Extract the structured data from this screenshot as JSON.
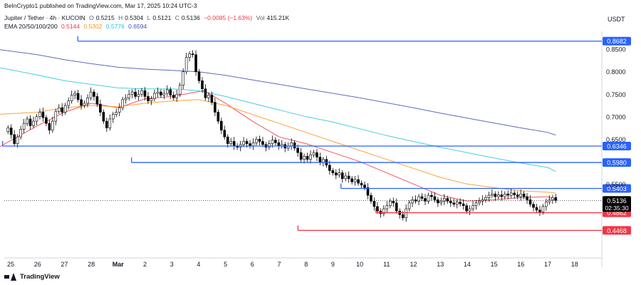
{
  "header": {
    "published": "BeInCrypto1 published on TradingView.com, Mar 17, 2025 10:24 UTC-3",
    "symbol": "Jupiter / Tether · 4h · KUCOIN",
    "o_label": "O",
    "o": "0.5215",
    "h_label": "H",
    "h": "0.5304",
    "l_label": "L",
    "l": "0.5121",
    "c_label": "C",
    "c": "0.5136",
    "change": "−0.0085 (−1.63%)",
    "vol_label": "Vol",
    "vol": "415.21K",
    "ema_label": "EMA 20/50/100/200",
    "ema20": "0.5144",
    "ema50": "0.5302",
    "ema100": "0.5776",
    "ema200": "0.6594"
  },
  "currency": "USDT",
  "branding": "TradingView",
  "countdown": "02:35:30",
  "colors": {
    "up": "#ffffff",
    "down": "#000000",
    "ema20": "#f23645",
    "ema50": "#f7931a",
    "ema100": "#26c6da",
    "ema200": "#3f51b5",
    "resistance": "#2962ff",
    "support": "#f23645"
  },
  "chart_data": {
    "type": "candlestick",
    "timeframe": "4h",
    "ylim": [
      0.43,
      0.89
    ],
    "x_tick_labels": [
      "25",
      "26",
      "27",
      "28",
      "Mar",
      "2",
      "3",
      "4",
      "5",
      "6",
      "7",
      "8",
      "9",
      "10",
      "11",
      "12",
      "13",
      "14",
      "15",
      "16",
      "17",
      "18"
    ],
    "y_tick_labels": [
      "0.8500",
      "0.8000",
      "0.7500",
      "0.7000",
      "0.6500",
      "0.5500"
    ],
    "y_ticks": [
      0.85,
      0.8,
      0.75,
      0.7,
      0.65,
      0.55
    ],
    "levels": [
      {
        "price": 0.8682,
        "label": "0.8682",
        "kind": "resistance",
        "from_day": 2.5
      },
      {
        "price": 0.6346,
        "label": "0.6346",
        "kind": "resistance",
        "from_day": -0.3
      },
      {
        "price": 0.598,
        "label": "0.5980",
        "kind": "resistance",
        "from_day": 4.5
      },
      {
        "price": 0.5403,
        "label": "0.5403",
        "kind": "resistance",
        "from_day": 12.3
      },
      {
        "price": 0.4862,
        "label": "0.4862",
        "kind": "support",
        "from_day": 13.6
      },
      {
        "price": 0.4468,
        "label": "0.4468",
        "kind": "support",
        "from_day": 10.7
      }
    ],
    "last_price": {
      "price": 0.5136,
      "label": "0.5136"
    },
    "ema_series": [
      {
        "name": "EMA 20",
        "points": [
          [
            -0.5,
            0.63
          ],
          [
            1,
            0.68
          ],
          [
            2,
            0.71
          ],
          [
            3,
            0.73
          ],
          [
            4,
            0.72
          ],
          [
            5,
            0.74
          ],
          [
            6,
            0.745
          ],
          [
            7.2,
            0.758
          ],
          [
            8,
            0.73
          ],
          [
            9,
            0.69
          ],
          [
            10,
            0.655
          ],
          [
            11,
            0.64
          ],
          [
            12,
            0.62
          ],
          [
            13,
            0.6
          ],
          [
            14,
            0.575
          ],
          [
            15,
            0.55
          ],
          [
            16,
            0.525
          ],
          [
            17,
            0.512
          ],
          [
            18,
            0.515
          ],
          [
            19,
            0.52
          ],
          [
            20,
            0.522
          ],
          [
            20.3,
            0.514
          ]
        ]
      },
      {
        "name": "EMA 50",
        "points": [
          [
            -0.5,
            0.705
          ],
          [
            1,
            0.71
          ],
          [
            2,
            0.72
          ],
          [
            3,
            0.725
          ],
          [
            4,
            0.722
          ],
          [
            5,
            0.73
          ],
          [
            6,
            0.735
          ],
          [
            7,
            0.738
          ],
          [
            8,
            0.725
          ],
          [
            9,
            0.705
          ],
          [
            10,
            0.685
          ],
          [
            11,
            0.665
          ],
          [
            12,
            0.645
          ],
          [
            13,
            0.625
          ],
          [
            14,
            0.605
          ],
          [
            15,
            0.585
          ],
          [
            16,
            0.565
          ],
          [
            17,
            0.55
          ],
          [
            18,
            0.542
          ],
          [
            19,
            0.535
          ],
          [
            20,
            0.532
          ],
          [
            20.3,
            0.53
          ]
        ]
      },
      {
        "name": "EMA 100",
        "points": [
          [
            -0.5,
            0.81
          ],
          [
            1,
            0.793
          ],
          [
            2,
            0.78
          ],
          [
            3,
            0.772
          ],
          [
            4,
            0.764
          ],
          [
            5,
            0.762
          ],
          [
            6,
            0.762
          ],
          [
            7,
            0.758
          ],
          [
            8,
            0.745
          ],
          [
            9,
            0.73
          ],
          [
            10,
            0.715
          ],
          [
            11,
            0.7
          ],
          [
            12,
            0.688
          ],
          [
            13,
            0.673
          ],
          [
            14,
            0.658
          ],
          [
            15,
            0.645
          ],
          [
            16,
            0.632
          ],
          [
            17,
            0.62
          ],
          [
            18,
            0.608
          ],
          [
            19,
            0.597
          ],
          [
            20,
            0.587
          ],
          [
            20.3,
            0.578
          ]
        ]
      },
      {
        "name": "EMA 200",
        "points": [
          [
            -0.5,
            0.85
          ],
          [
            1,
            0.838
          ],
          [
            2,
            0.827
          ],
          [
            3,
            0.818
          ],
          [
            4,
            0.81
          ],
          [
            5,
            0.806
          ],
          [
            6,
            0.803
          ],
          [
            7,
            0.8
          ],
          [
            8,
            0.792
          ],
          [
            9,
            0.782
          ],
          [
            10,
            0.772
          ],
          [
            11,
            0.762
          ],
          [
            12,
            0.752
          ],
          [
            13,
            0.742
          ],
          [
            14,
            0.731
          ],
          [
            15,
            0.72
          ],
          [
            16,
            0.708
          ],
          [
            17,
            0.697
          ],
          [
            18,
            0.686
          ],
          [
            19,
            0.675
          ],
          [
            20,
            0.665
          ],
          [
            20.3,
            0.659
          ]
        ]
      }
    ],
    "candle_closes": [
      0.675,
      0.66,
      0.64,
      0.655,
      0.672,
      0.685,
      0.695,
      0.68,
      0.69,
      0.7,
      0.71,
      0.698,
      0.685,
      0.67,
      0.69,
      0.712,
      0.72,
      0.71,
      0.725,
      0.735,
      0.748,
      0.752,
      0.738,
      0.725,
      0.73,
      0.742,
      0.755,
      0.745,
      0.728,
      0.71,
      0.69,
      0.675,
      0.695,
      0.705,
      0.71,
      0.72,
      0.738,
      0.742,
      0.75,
      0.755,
      0.745,
      0.75,
      0.758,
      0.745,
      0.735,
      0.74,
      0.752,
      0.755,
      0.748,
      0.752,
      0.76,
      0.748,
      0.742,
      0.75,
      0.77,
      0.8,
      0.832,
      0.84,
      0.838,
      0.8,
      0.78,
      0.762,
      0.742,
      0.748,
      0.732,
      0.71,
      0.69,
      0.67,
      0.655,
      0.64,
      0.645,
      0.635,
      0.632,
      0.638,
      0.645,
      0.64,
      0.635,
      0.642,
      0.65,
      0.645,
      0.638,
      0.632,
      0.64,
      0.648,
      0.642,
      0.635,
      0.638,
      0.63,
      0.635,
      0.642,
      0.63,
      0.62,
      0.605,
      0.612,
      0.605,
      0.615,
      0.62,
      0.61,
      0.598,
      0.605,
      0.592,
      0.58,
      0.575,
      0.57,
      0.575,
      0.562,
      0.568,
      0.562,
      0.555,
      0.56,
      0.552,
      0.548,
      0.542,
      0.525,
      0.512,
      0.5,
      0.49,
      0.484,
      0.495,
      0.502,
      0.512,
      0.508,
      0.49,
      0.482,
      0.475,
      0.495,
      0.508,
      0.515,
      0.512,
      0.522,
      0.518,
      0.512,
      0.525,
      0.522,
      0.515,
      0.508,
      0.512,
      0.518,
      0.512,
      0.508,
      0.505,
      0.51,
      0.506,
      0.502,
      0.49,
      0.495,
      0.502,
      0.508,
      0.512,
      0.515,
      0.52,
      0.525,
      0.528,
      0.522,
      0.526,
      0.522,
      0.528,
      0.525,
      0.53,
      0.526,
      0.522,
      0.528,
      0.522,
      0.515,
      0.505,
      0.498,
      0.492,
      0.488,
      0.5,
      0.51,
      0.515,
      0.52,
      0.5136
    ]
  }
}
